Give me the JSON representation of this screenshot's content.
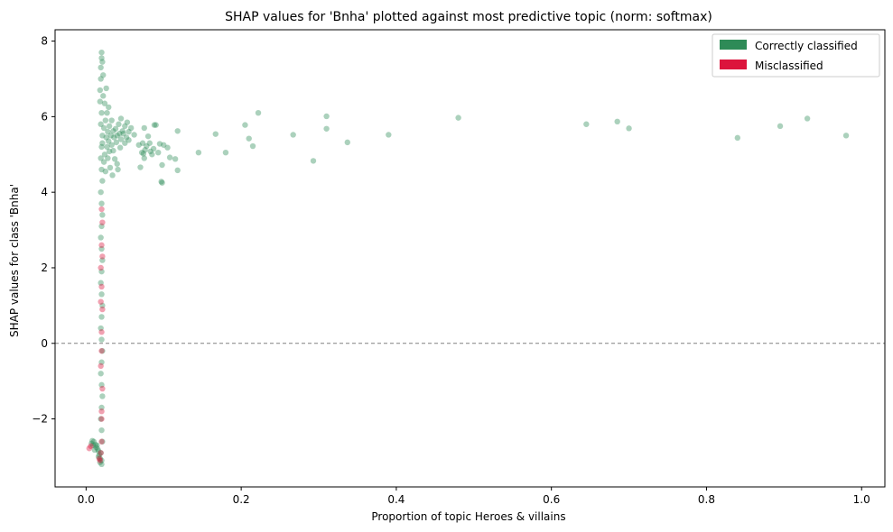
{
  "chart_data": {
    "type": "scatter",
    "title": "SHAP values for 'Bnha' plotted against most predictive topic (norm: softmax)",
    "xlabel": "Proportion of topic Heroes & villains",
    "ylabel": "SHAP values for class 'Bnha'",
    "xlim": [
      -0.04,
      1.03
    ],
    "ylim": [
      -3.8,
      8.3
    ],
    "x_ticks": [
      0.0,
      0.2,
      0.4,
      0.6,
      0.8,
      1.0
    ],
    "x_tick_labels": [
      "0.0",
      "0.2",
      "0.4",
      "0.6",
      "0.8",
      "1.0"
    ],
    "y_ticks": [
      -2,
      0,
      2,
      4,
      6,
      8
    ],
    "y_tick_labels": [
      "−2",
      "0",
      "2",
      "4",
      "6",
      "8"
    ],
    "reference_line": {
      "y": 0,
      "style": "dashed",
      "color": "#808080"
    },
    "grid": false,
    "legend": {
      "placement": "top-right",
      "entries": [
        {
          "label": "Correctly classified",
          "color": "#2e8b57"
        },
        {
          "label": "Misclassified",
          "color": "#dc143c"
        }
      ]
    },
    "series": [
      {
        "name": "Correctly classified",
        "color": "#2e8b57",
        "points": [
          [
            0.48,
            5.97
          ],
          [
            0.645,
            5.8
          ],
          [
            0.685,
            5.87
          ],
          [
            0.7,
            5.69
          ],
          [
            0.84,
            5.44
          ],
          [
            0.895,
            5.75
          ],
          [
            0.93,
            5.95
          ],
          [
            0.98,
            5.5
          ],
          [
            0.39,
            5.52
          ],
          [
            0.337,
            5.32
          ],
          [
            0.31,
            6.01
          ],
          [
            0.31,
            5.68
          ],
          [
            0.293,
            4.83
          ],
          [
            0.267,
            5.52
          ],
          [
            0.222,
            6.1
          ],
          [
            0.215,
            5.22
          ],
          [
            0.21,
            5.42
          ],
          [
            0.205,
            5.78
          ],
          [
            0.18,
            5.05
          ],
          [
            0.167,
            5.54
          ],
          [
            0.145,
            5.05
          ],
          [
            0.118,
            5.62
          ],
          [
            0.118,
            4.58
          ],
          [
            0.115,
            4.88
          ],
          [
            0.108,
            4.92
          ],
          [
            0.105,
            5.18
          ],
          [
            0.1,
            5.25
          ],
          [
            0.098,
            4.72
          ],
          [
            0.095,
            5.28
          ],
          [
            0.098,
            4.25
          ],
          [
            0.097,
            4.28
          ],
          [
            0.093,
            5.05
          ],
          [
            0.09,
            5.78
          ],
          [
            0.088,
            5.78
          ],
          [
            0.087,
            5.15
          ],
          [
            0.085,
            5.0
          ],
          [
            0.083,
            5.08
          ],
          [
            0.082,
            5.3
          ],
          [
            0.08,
            5.48
          ],
          [
            0.078,
            5.22
          ],
          [
            0.076,
            5.12
          ],
          [
            0.075,
            5.7
          ],
          [
            0.075,
            4.9
          ],
          [
            0.074,
            5.02
          ],
          [
            0.073,
            5.3
          ],
          [
            0.072,
            5.05
          ],
          [
            0.07,
            4.66
          ],
          [
            0.068,
            5.25
          ],
          [
            0.062,
            5.52
          ],
          [
            0.058,
            5.7
          ],
          [
            0.055,
            5.38
          ],
          [
            0.055,
            5.6
          ],
          [
            0.053,
            5.85
          ],
          [
            0.052,
            5.45
          ],
          [
            0.05,
            5.3
          ],
          [
            0.05,
            5.75
          ],
          [
            0.048,
            5.55
          ],
          [
            0.047,
            5.62
          ],
          [
            0.045,
            5.4
          ],
          [
            0.045,
            5.95
          ],
          [
            0.044,
            5.18
          ],
          [
            0.043,
            5.55
          ],
          [
            0.042,
            5.8
          ],
          [
            0.041,
            4.6
          ],
          [
            0.04,
            5.5
          ],
          [
            0.04,
            4.75
          ],
          [
            0.039,
            5.32
          ],
          [
            0.038,
            5.68
          ],
          [
            0.037,
            4.88
          ],
          [
            0.036,
            5.45
          ],
          [
            0.035,
            5.1
          ],
          [
            0.035,
            5.62
          ],
          [
            0.034,
            4.45
          ],
          [
            0.033,
            5.9
          ],
          [
            0.033,
            5.25
          ],
          [
            0.032,
            5.5
          ],
          [
            0.031,
            4.65
          ],
          [
            0.03,
            5.08
          ],
          [
            0.03,
            5.75
          ],
          [
            0.029,
            6.25
          ],
          [
            0.029,
            5.35
          ],
          [
            0.028,
            4.9
          ],
          [
            0.028,
            5.6
          ],
          [
            0.027,
            6.1
          ],
          [
            0.027,
            5.2
          ],
          [
            0.026,
            6.75
          ],
          [
            0.026,
            5.45
          ],
          [
            0.025,
            4.55
          ],
          [
            0.025,
            5.9
          ],
          [
            0.024,
            5.0
          ],
          [
            0.024,
            6.35
          ],
          [
            0.023,
            5.7
          ],
          [
            0.023,
            4.8
          ],
          [
            0.022,
            7.1
          ],
          [
            0.022,
            6.55
          ],
          [
            0.021,
            5.3
          ],
          [
            0.021,
            7.45
          ],
          [
            0.02,
            7.7
          ],
          [
            0.02,
            7.55
          ],
          [
            0.019,
            7.3
          ],
          [
            0.019,
            7.0
          ],
          [
            0.018,
            6.7
          ],
          [
            0.018,
            6.4
          ],
          [
            0.02,
            6.1
          ],
          [
            0.019,
            5.8
          ],
          [
            0.021,
            5.5
          ],
          [
            0.02,
            5.2
          ],
          [
            0.019,
            4.9
          ],
          [
            0.02,
            4.6
          ],
          [
            0.021,
            4.3
          ],
          [
            0.019,
            4.0
          ],
          [
            0.02,
            3.7
          ],
          [
            0.021,
            3.4
          ],
          [
            0.02,
            3.1
          ],
          [
            0.019,
            2.8
          ],
          [
            0.02,
            2.5
          ],
          [
            0.021,
            2.2
          ],
          [
            0.02,
            1.9
          ],
          [
            0.019,
            1.6
          ],
          [
            0.02,
            1.3
          ],
          [
            0.021,
            1.0
          ],
          [
            0.02,
            0.7
          ],
          [
            0.019,
            0.4
          ],
          [
            0.02,
            0.1
          ],
          [
            0.021,
            -0.2
          ],
          [
            0.02,
            -0.5
          ],
          [
            0.019,
            -0.8
          ],
          [
            0.02,
            -1.1
          ],
          [
            0.021,
            -1.4
          ],
          [
            0.02,
            -1.7
          ],
          [
            0.019,
            -2.0
          ],
          [
            0.02,
            -2.3
          ],
          [
            0.021,
            -2.6
          ],
          [
            0.019,
            -2.9
          ],
          [
            0.02,
            -3.1
          ],
          [
            0.02,
            -3.2
          ],
          [
            0.018,
            -3.05
          ],
          [
            0.017,
            -2.95
          ],
          [
            0.016,
            -2.85
          ],
          [
            0.015,
            -2.8
          ],
          [
            0.014,
            -2.7
          ],
          [
            0.013,
            -2.75
          ],
          [
            0.012,
            -2.68
          ],
          [
            0.01,
            -2.6
          ],
          [
            0.009,
            -2.7
          ],
          [
            0.008,
            -2.58
          ],
          [
            0.007,
            -2.65
          ],
          [
            0.011,
            -2.82
          ],
          [
            0.016,
            -3.0
          ],
          [
            0.018,
            -3.15
          ]
        ]
      },
      {
        "name": "Misclassified",
        "color": "#dc143c",
        "points": [
          [
            0.004,
            -2.78
          ],
          [
            0.006,
            -2.72
          ],
          [
            0.018,
            -3.1
          ],
          [
            0.017,
            -3.05
          ],
          [
            0.019,
            -2.9
          ],
          [
            0.02,
            -2.6
          ],
          [
            0.02,
            -2.0
          ],
          [
            0.021,
            -1.2
          ],
          [
            0.019,
            -0.6
          ],
          [
            0.02,
            0.3
          ],
          [
            0.021,
            0.9
          ],
          [
            0.02,
            1.5
          ],
          [
            0.019,
            2.0
          ],
          [
            0.02,
            2.6
          ],
          [
            0.021,
            3.2
          ],
          [
            0.02,
            3.55
          ],
          [
            0.019,
            1.1
          ],
          [
            0.02,
            -1.8
          ],
          [
            0.021,
            2.3
          ],
          [
            0.02,
            -0.2
          ]
        ]
      }
    ]
  }
}
